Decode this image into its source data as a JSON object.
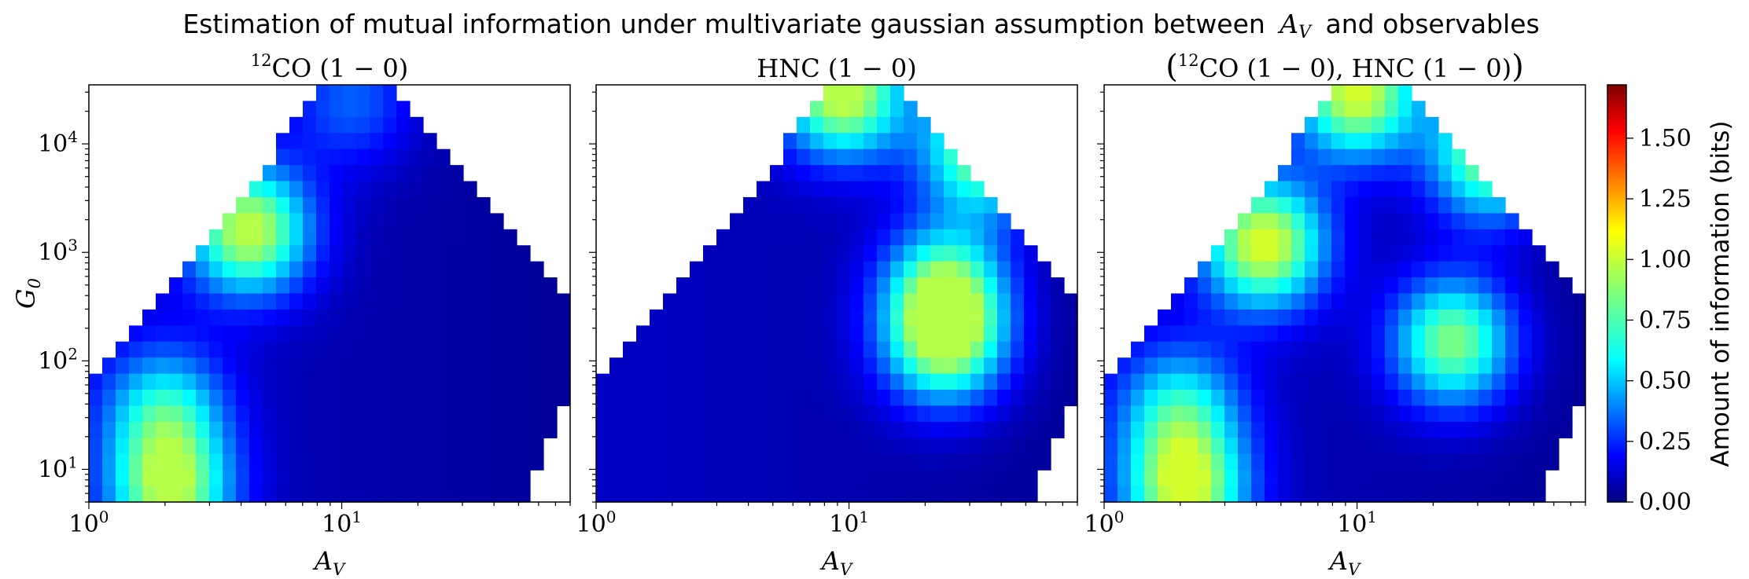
{
  "figure": {
    "title_prefix": "Estimation of mutual information under multivariate gaussian assumption between",
    "title_var": "A",
    "title_var_sub": "V",
    "title_suffix": "and observables"
  },
  "colorbar": {
    "label": "Amount of information (bits)",
    "ticks": [
      "0.00",
      "0.25",
      "0.50",
      "0.75",
      "1.00",
      "1.25",
      "1.50"
    ],
    "tick_values": [
      0,
      0.25,
      0.5,
      0.75,
      1.0,
      1.25,
      1.5
    ],
    "range": [
      0,
      1.72
    ],
    "colormap": "jet"
  },
  "chart_data": [
    {
      "type": "heatmap",
      "title": "12CO (1 − 0)",
      "title_parts": {
        "sup": "12",
        "main": "CO (1 − 0)"
      },
      "xlabel": "A_V",
      "ylabel": "G_0",
      "xscale": "log",
      "yscale": "log",
      "xlim": [
        1,
        80
      ],
      "ylim": [
        5,
        35000
      ],
      "xticks": [
        "10^0",
        "10^1"
      ],
      "yticks": [
        "10^1",
        "10^2",
        "10^3",
        "10^4"
      ],
      "peak_value": 0.95,
      "blobs": [
        {
          "x": 4.3,
          "y": 1600,
          "value": 0.9
        },
        {
          "x": 2.1,
          "y": 6,
          "value": 0.8
        },
        {
          "x": 2.0,
          "y": 35,
          "value": 0.55
        },
        {
          "x": 11,
          "y": 25000,
          "value": 0.3
        }
      ]
    },
    {
      "type": "heatmap",
      "title": "HNC (1 − 0)",
      "xlabel": "A_V",
      "ylabel": "",
      "xscale": "log",
      "yscale": "log",
      "xlim": [
        1,
        80
      ],
      "ylim": [
        5,
        35000
      ],
      "xticks": [
        "10^0",
        "10^1"
      ],
      "yticks": [],
      "peak_value": 0.95,
      "blobs": [
        {
          "x": 9.5,
          "y": 30000,
          "value": 0.95
        },
        {
          "x": 34,
          "y": 9000,
          "value": 0.85
        },
        {
          "x": 24,
          "y": 150,
          "value": 0.8
        },
        {
          "x": 24,
          "y": 500,
          "value": 0.65
        }
      ]
    },
    {
      "type": "heatmap",
      "title": "(12CO (1 − 0), HNC (1 − 0))",
      "title_parts": {
        "sup": "12",
        "main": "CO (1 − 0), HNC (1 − 0)"
      },
      "xlabel": "A_V",
      "ylabel": "",
      "xscale": "log",
      "yscale": "log",
      "xlim": [
        1,
        80
      ],
      "ylim": [
        5,
        35000
      ],
      "xticks": [
        "10^0",
        "10^1"
      ],
      "yticks": [],
      "peak_value": 1.0,
      "blobs": [
        {
          "x": 4.3,
          "y": 1200,
          "value": 0.95
        },
        {
          "x": 2.1,
          "y": 6,
          "value": 0.85
        },
        {
          "x": 10,
          "y": 30000,
          "value": 0.95
        },
        {
          "x": 34,
          "y": 8000,
          "value": 0.85
        },
        {
          "x": 24,
          "y": 150,
          "value": 0.8
        },
        {
          "x": 2.0,
          "y": 35,
          "value": 0.55
        }
      ]
    }
  ]
}
